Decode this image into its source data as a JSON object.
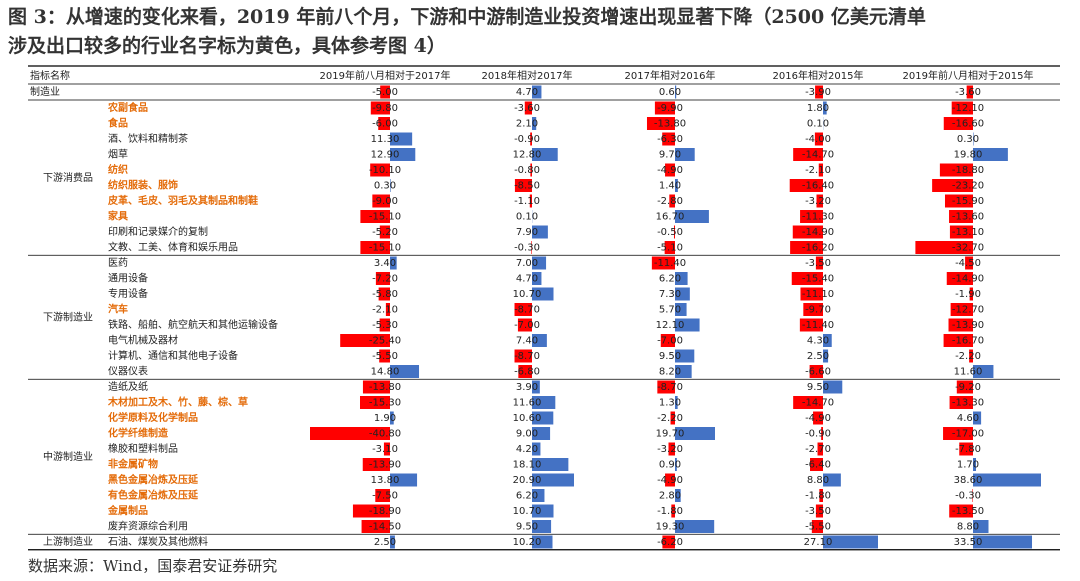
{
  "title": [
    "图 3：从增速的变化来看，2019 年前八个月，下游和中游制造业投资增速出现显著下降（2500 亿美元清单",
    "涉及出口较多的行业名字标为黄色，具体参考图 4）"
  ],
  "source": "数据来源：Wind，国泰君安证券研究",
  "table": {
    "header": [
      "指标名称",
      "2019年前八月相对于2017年",
      "2018年相对2017年",
      "2017年相对2016年",
      "2016年相对2015年",
      "2019年前八月相对于2015年"
    ],
    "highlight_color": "#e46c0a",
    "bar_colors": {
      "positive": "#4472c4",
      "negative": "#ff0000"
    },
    "total": {
      "name": "制造业",
      "values": [
        "-5.00",
        "4.70",
        "0.60",
        "-3.90",
        "-3.60"
      ]
    },
    "groups": [
      {
        "label": "下游消费品",
        "rows": [
          {
            "name": "农副食品",
            "highlight": true,
            "values": [
              "-9.80",
              "-3.60",
              "-9.90",
              "1.80",
              "-12.10"
            ]
          },
          {
            "name": "食品",
            "highlight": true,
            "values": [
              "-6.00",
              "2.10",
              "-13.80",
              "0.10",
              "-16.60"
            ]
          },
          {
            "name": "酒、饮料和精制茶",
            "highlight": false,
            "values": [
              "11.30",
              "-0.90",
              "-6.30",
              "-4.00",
              "0.30"
            ]
          },
          {
            "name": "烟草",
            "highlight": false,
            "values": [
              "12.90",
              "12.80",
              "9.70",
              "-14.70",
              "19.80"
            ]
          },
          {
            "name": "纺织",
            "highlight": true,
            "values": [
              "-10.10",
              "-0.80",
              "-4.90",
              "-2.10",
              "-18.80"
            ]
          },
          {
            "name": "纺织服装、服饰",
            "highlight": true,
            "values": [
              "0.30",
              "-8.50",
              "1.40",
              "-16.40",
              "-23.20"
            ]
          },
          {
            "name": "皮革、毛皮、羽毛及其制品和制鞋",
            "highlight": true,
            "values": [
              "-9.00",
              "-1.10",
              "-2.80",
              "-3.20",
              "-15.90"
            ]
          },
          {
            "name": "家具",
            "highlight": true,
            "values": [
              "-15.10",
              "0.10",
              "16.70",
              "-11.30",
              "-13.60"
            ]
          },
          {
            "name": "印刷和记录媒介的复制",
            "highlight": false,
            "values": [
              "-5.20",
              "7.90",
              "-0.50",
              "-14.90",
              "-13.10"
            ]
          },
          {
            "name": "文教、工美、体育和娱乐用品",
            "highlight": false,
            "values": [
              "-15.10",
              "-0.30",
              "-5.10",
              "-16.20",
              "-32.70"
            ]
          }
        ]
      },
      {
        "label": "下游制造业",
        "rows": [
          {
            "name": "医药",
            "highlight": false,
            "values": [
              "3.40",
              "7.00",
              "-11.40",
              "-3.50",
              "-4.50"
            ]
          },
          {
            "name": "通用设备",
            "highlight": false,
            "values": [
              "-7.20",
              "4.70",
              "6.20",
              "-15.40",
              "-14.90"
            ]
          },
          {
            "name": "专用设备",
            "highlight": false,
            "values": [
              "-5.80",
              "10.70",
              "7.30",
              "-11.10",
              "-1.90"
            ]
          },
          {
            "name": "汽车",
            "highlight": true,
            "values": [
              "-2.10",
              "-8.70",
              "5.70",
              "-9.70",
              "-12.70"
            ]
          },
          {
            "name": "铁路、船舶、航空航天和其他运输设备",
            "highlight": false,
            "values": [
              "-5.30",
              "-7.00",
              "12.10",
              "-11.40",
              "-13.90"
            ]
          },
          {
            "name": "电气机械及器材",
            "highlight": false,
            "values": [
              "-25.40",
              "7.40",
              "-7.00",
              "4.30",
              "-16.70"
            ]
          },
          {
            "name": "计算机、通信和其他电子设备",
            "highlight": false,
            "values": [
              "-5.50",
              "-8.70",
              "9.50",
              "2.50",
              "-2.20"
            ]
          },
          {
            "name": "仪器仪表",
            "highlight": false,
            "values": [
              "14.80",
              "-6.80",
              "8.20",
              "-6.60",
              "11.60"
            ]
          }
        ]
      },
      {
        "label": "中游制造业",
        "rows": [
          {
            "name": "造纸及纸",
            "highlight": false,
            "values": [
              "-13.80",
              "3.90",
              "-8.70",
              "9.50",
              "-9.20"
            ]
          },
          {
            "name": "木材加工及木、竹、藤、棕、草",
            "highlight": true,
            "values": [
              "-15.30",
              "11.60",
              "1.30",
              "-14.70",
              "-13.30"
            ]
          },
          {
            "name": "化学原料及化学制品",
            "highlight": true,
            "values": [
              "1.90",
              "10.60",
              "-2.20",
              "-4.90",
              "4.60"
            ]
          },
          {
            "name": "化学纤维制造",
            "highlight": true,
            "values": [
              "-40.80",
              "9.00",
              "19.70",
              "-0.90",
              "-17.00"
            ]
          },
          {
            "name": "橡胶和塑料制品",
            "highlight": false,
            "values": [
              "-3.10",
              "4.20",
              "-3.20",
              "-2.70",
              "-7.80"
            ]
          },
          {
            "name": "非金属矿物",
            "highlight": true,
            "values": [
              "-13.90",
              "18.10",
              "0.90",
              "-6.40",
              "1.70"
            ]
          },
          {
            "name": "黑色金属冶炼及压延",
            "highlight": true,
            "values": [
              "13.80",
              "20.90",
              "-4.90",
              "8.80",
              "38.60"
            ]
          },
          {
            "name": "有色金属冶炼及压延",
            "highlight": true,
            "values": [
              "-7.50",
              "6.20",
              "2.80",
              "-1.80",
              "-0.30"
            ]
          },
          {
            "name": "金属制品",
            "highlight": true,
            "values": [
              "-18.90",
              "10.70",
              "-1.80",
              "-3.50",
              "-13.50"
            ]
          },
          {
            "name": "废弃资源综合利用",
            "highlight": false,
            "values": [
              "-14.50",
              "9.50",
              "19.30",
              "-5.50",
              "8.80"
            ]
          }
        ]
      },
      {
        "label": "上游制造业",
        "rows": [
          {
            "name": "石油、煤炭及其他燃料",
            "highlight": false,
            "values": [
              "2.50",
              "10.20",
              "-6.20",
              "27.10",
              "33.50"
            ]
          }
        ]
      }
    ]
  }
}
